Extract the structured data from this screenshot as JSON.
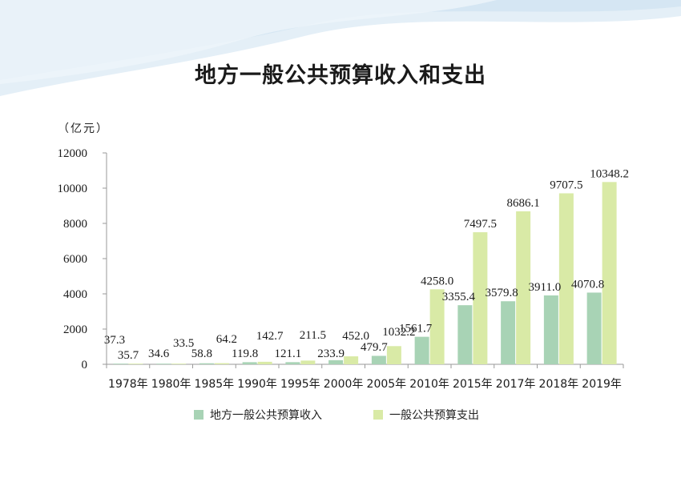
{
  "title": "地方一般公共预算收入和支出",
  "unit": "（亿元）",
  "colors": {
    "income": "#a8d3b5",
    "expense": "#d9eaa6",
    "axis": "#9a9a9a",
    "wave": "#dcebf5"
  },
  "chart_data": {
    "type": "bar",
    "title": "地方一般公共预算收入和支出",
    "ylabel": "（亿元）",
    "ylim": [
      0,
      12000
    ],
    "yticks": [
      "0",
      "2000",
      "4000",
      "6000",
      "8000",
      "10000",
      "12000"
    ],
    "ytick_values": [
      0,
      2000,
      4000,
      6000,
      8000,
      10000,
      12000
    ],
    "categories": [
      "1978年",
      "1980年",
      "1985年",
      "1990年",
      "1995年",
      "2000年",
      "2005年",
      "2010年",
      "2015年",
      "2017年",
      "2018年",
      "2019年"
    ],
    "series": [
      {
        "name": "地方一般公共预算收入",
        "values": [
          37.3,
          34.6,
          58.8,
          119.8,
          121.1,
          233.9,
          479.7,
          1561.7,
          3355.4,
          3579.8,
          3911.0,
          4070.8
        ],
        "labels": [
          "37.3",
          "34.6",
          "58.8",
          "119.8",
          "121.1",
          "233.9",
          "479.7",
          "1561.7",
          "3355.4",
          "3579.8",
          "3911.0",
          "4070.8"
        ]
      },
      {
        "name": "一般公共预算支出",
        "values": [
          35.7,
          33.5,
          64.2,
          142.7,
          211.5,
          452.0,
          1032.2,
          4258.0,
          7497.5,
          8686.1,
          9707.5,
          10348.2
        ],
        "labels": [
          "35.7",
          "33.5",
          "64.2",
          "142.7",
          "211.5",
          "452.0",
          "1032.2",
          "4258.0",
          "7497.5",
          "8686.1",
          "9707.5",
          "10348.2"
        ]
      }
    ],
    "legend_position": "bottom",
    "grid": false
  }
}
